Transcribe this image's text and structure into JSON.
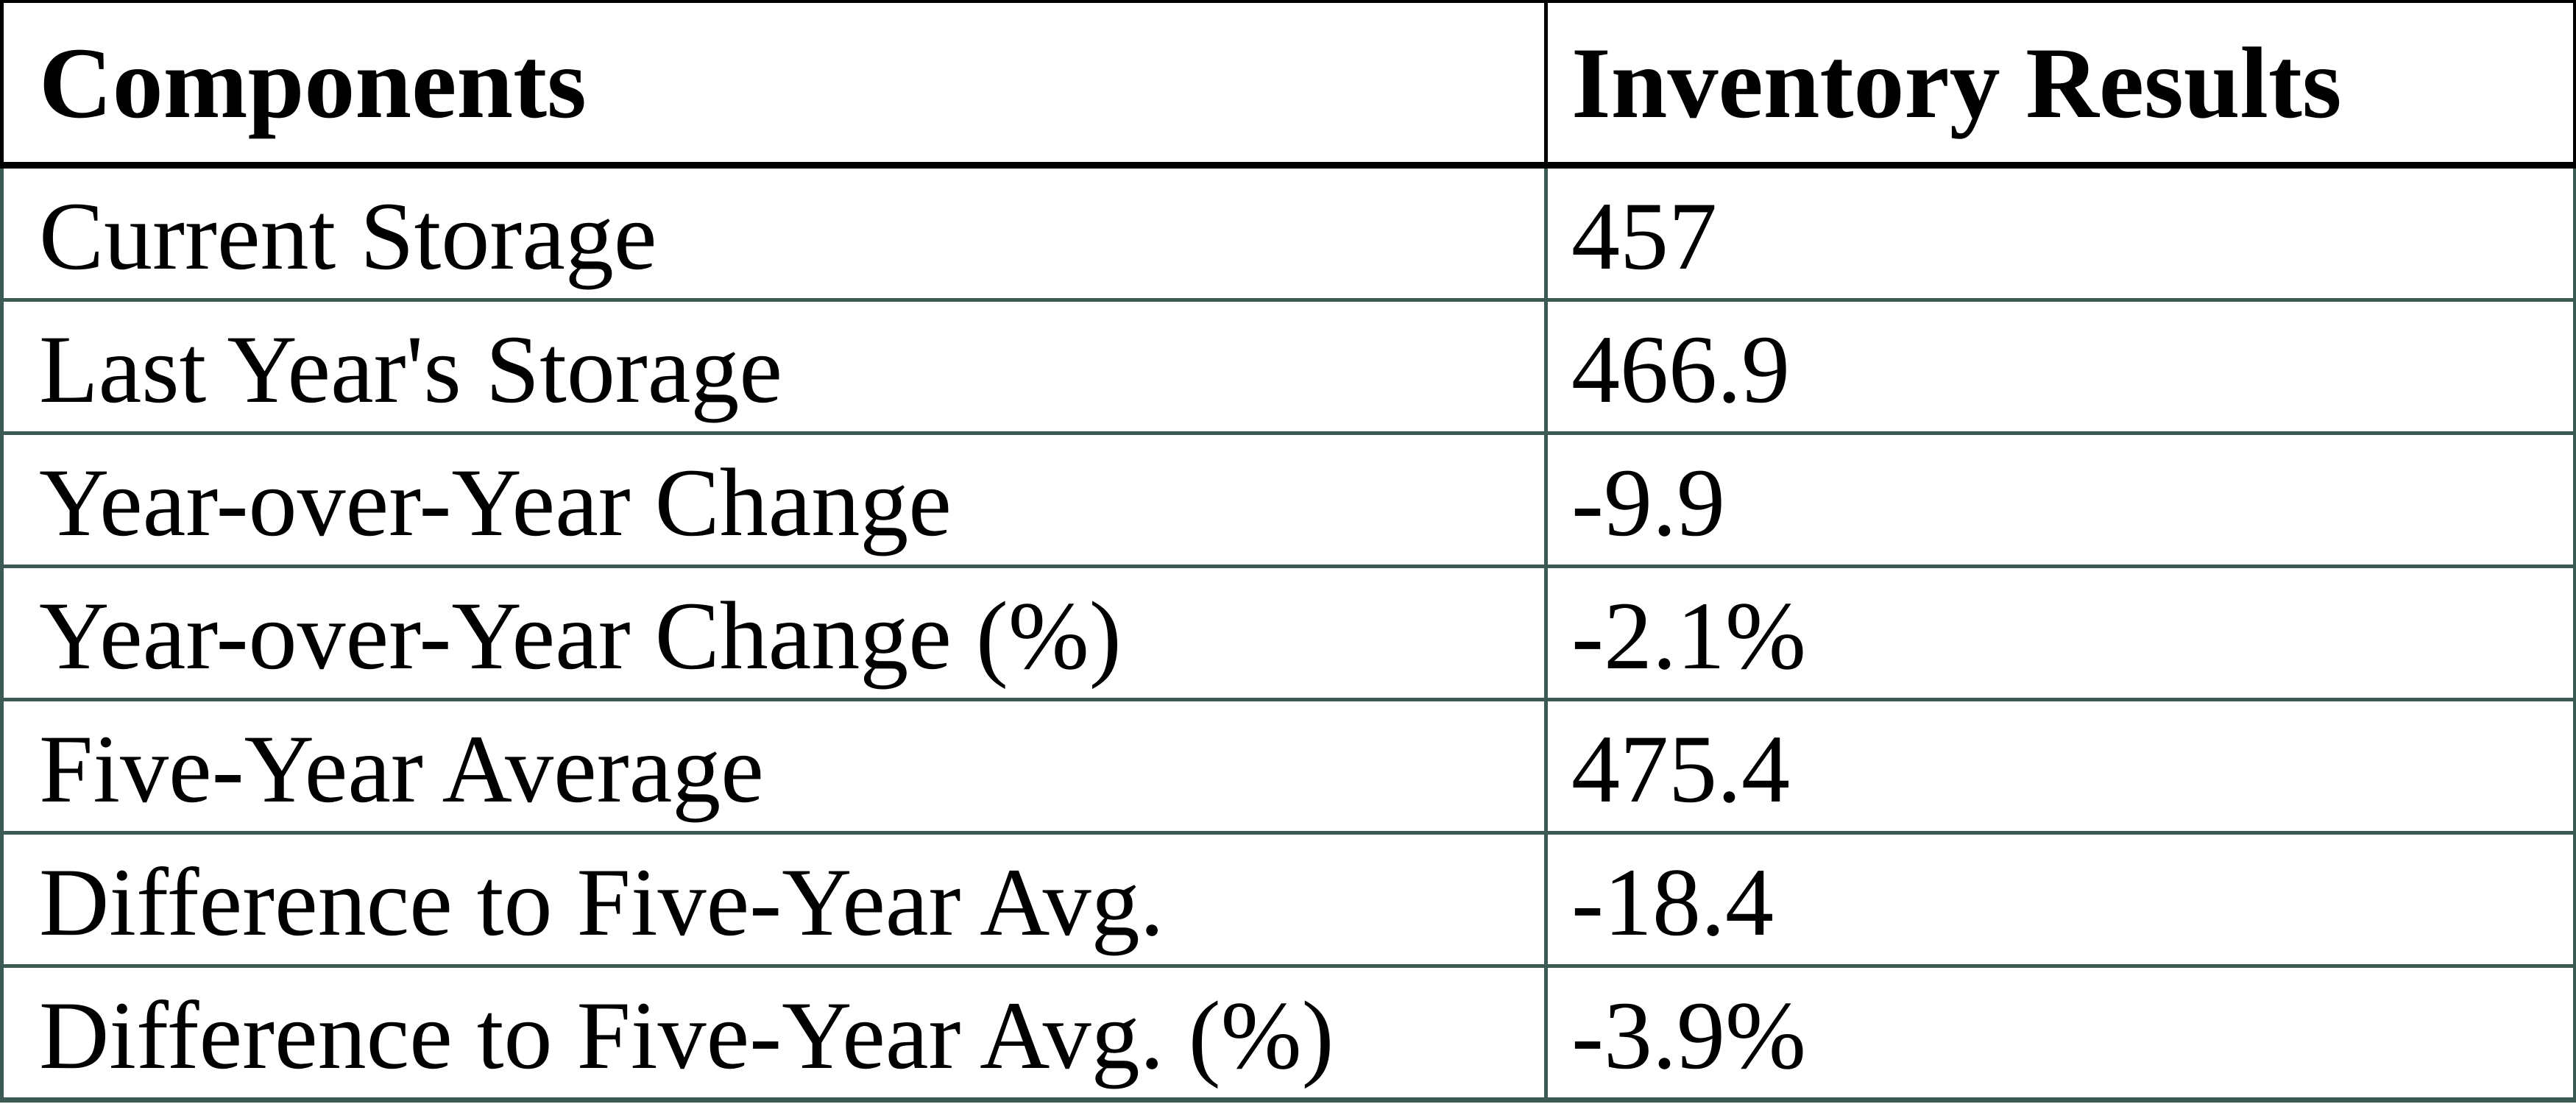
{
  "chart_data": {
    "type": "table",
    "columns": [
      "Components",
      "Inventory Results"
    ],
    "rows": [
      [
        "Current Storage",
        "457"
      ],
      [
        "Last Year's Storage",
        "466.9"
      ],
      [
        "Year-over-Year Change",
        "-9.9"
      ],
      [
        "Year-over-Year Change (%)",
        "-2.1%"
      ],
      [
        "Five-Year Average",
        "475.4"
      ],
      [
        "Difference to Five-Year Avg.",
        "-18.4"
      ],
      [
        "Difference to Five-Year Avg. (%)",
        "-3.9%"
      ]
    ]
  },
  "colors": {
    "header_border": "#000000",
    "body_border": "#3b5a54",
    "text": "#000000",
    "background": "#ffffff"
  }
}
